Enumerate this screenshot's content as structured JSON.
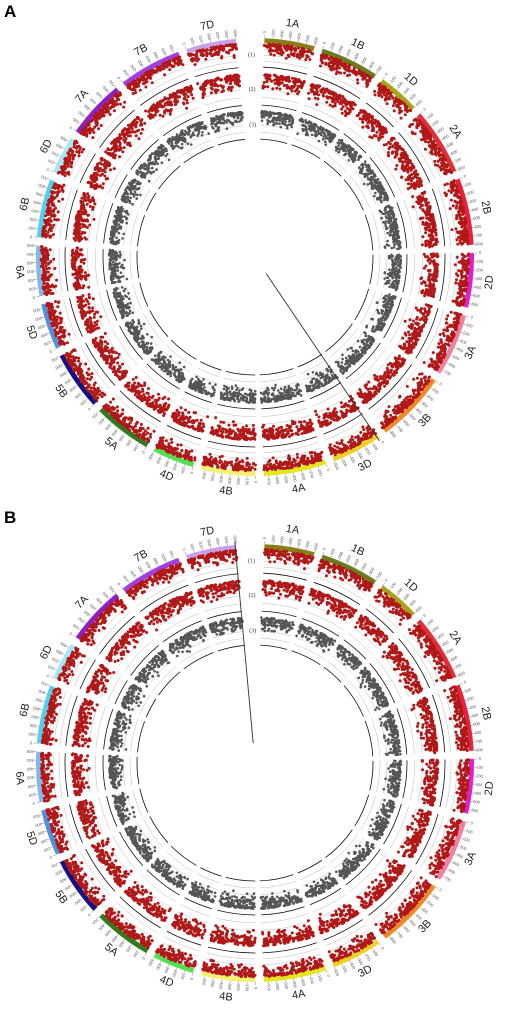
{
  "panels": [
    {
      "label": "A",
      "highlight": {
        "chromosome": "3D",
        "position_mb": 20
      }
    },
    {
      "label": "B",
      "highlight": {
        "chromosome": "7D",
        "position_mb": 590
      }
    }
  ],
  "track_labels": [
    "(1)",
    "(2)",
    "(3)"
  ],
  "chromosomes": [
    {
      "name": "1A",
      "length_mb": 600,
      "color": "#8b7d18"
    },
    {
      "name": "1B",
      "length_mb": 700,
      "color": "#6b7b1d"
    },
    {
      "name": "1D",
      "length_mb": 500,
      "color": "#a8a418"
    },
    {
      "name": "2A",
      "length_mb": 800,
      "color": "#e0303a"
    },
    {
      "name": "2B",
      "length_mb": 800,
      "color": "#e8223c"
    },
    {
      "name": "2D",
      "length_mb": 650,
      "color": "#e020c8"
    },
    {
      "name": "3A",
      "length_mb": 750,
      "color": "#f080a0"
    },
    {
      "name": "3B",
      "length_mb": 850,
      "color": "#f08a28"
    },
    {
      "name": "3D",
      "length_mb": 600,
      "color": "#f0d020"
    },
    {
      "name": "4A",
      "length_mb": 750,
      "color": "#e6e620"
    },
    {
      "name": "4B",
      "length_mb": 650,
      "color": "#f5f070"
    },
    {
      "name": "4D",
      "length_mb": 500,
      "color": "#50e050"
    },
    {
      "name": "5A",
      "length_mb": 700,
      "color": "#2e7d1c"
    },
    {
      "name": "5B",
      "length_mb": 700,
      "color": "#10108a"
    },
    {
      "name": "5D",
      "length_mb": 550,
      "color": "#5090e0"
    },
    {
      "name": "6A",
      "length_mb": 600,
      "color": "#80b8f0"
    },
    {
      "name": "6B",
      "length_mb": 700,
      "color": "#50d0f0"
    },
    {
      "name": "6D",
      "length_mb": 450,
      "color": "#a0e8f8"
    },
    {
      "name": "7A",
      "length_mb": 700,
      "color": "#8a20c8"
    },
    {
      "name": "7B",
      "length_mb": 750,
      "color": "#a040e0"
    },
    {
      "name": "7D",
      "length_mb": 600,
      "color": "#c8a0e8"
    }
  ],
  "colors": {
    "track1": "#b01818",
    "track2": "#b01818",
    "track3": "#555555",
    "grid": "#bbbbbb",
    "baseline": "#111111"
  }
}
